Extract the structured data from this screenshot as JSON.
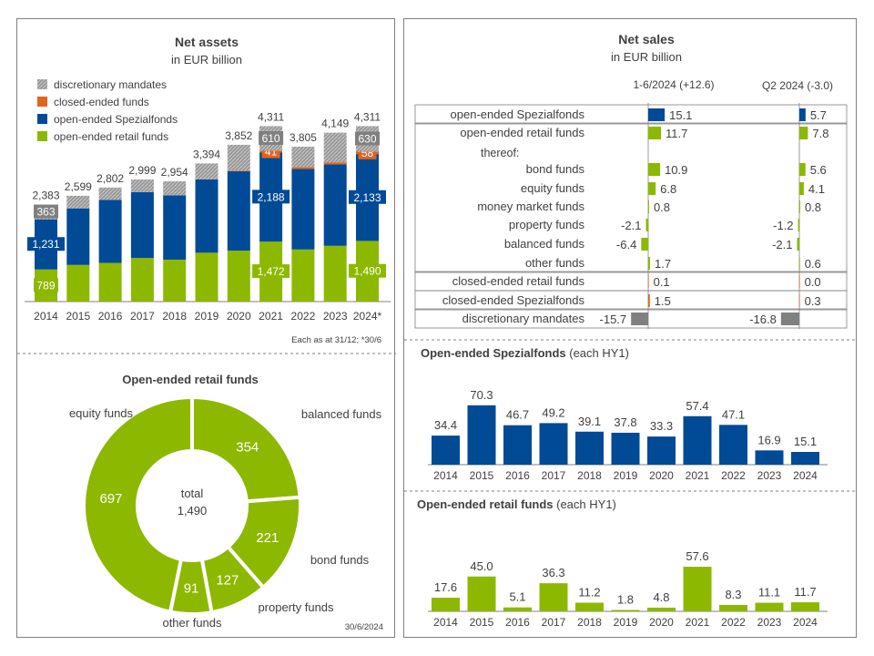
{
  "colors": {
    "retail": "#8DB800",
    "spezial": "#004A96",
    "closed": "#E2641C",
    "discretionary": "#808080",
    "text": "#404040",
    "divider": "#808080"
  },
  "net_assets": {
    "title": "Net assets",
    "subtitle": "in EUR billion",
    "legend": [
      {
        "label": "discretionary mandates",
        "color": "#8C8C8C",
        "pattern": "hatch-grey"
      },
      {
        "label": "closed-ended funds",
        "color": "#E2641C",
        "pattern": "solid"
      },
      {
        "label": "open-ended  Spezialfonds",
        "color": "#004A96",
        "pattern": "solid"
      },
      {
        "label": "open-ended retail funds",
        "color": "#8DB800",
        "pattern": "solid"
      }
    ],
    "footnote": "Each as at 31/12; *30/6"
  },
  "retail_pie": {
    "title": "Open-ended retail funds",
    "center_label": "total",
    "center_value": "1,490",
    "date_note": "30/6/2024"
  },
  "net_sales": {
    "title": "Net sales",
    "subtitle": "in EUR billion",
    "col1_header": "1-6/2024 (+12.6)",
    "col2_header": "Q2 2024 (-3.0)",
    "thereof_label": "thereof:"
  },
  "spezial_hy1": {
    "title": "Open-ended Spezialfonds",
    "title_suffix": " (each HY1)"
  },
  "retail_hy1": {
    "title": "Open-ended retail funds",
    "title_suffix": " (each HY1)"
  },
  "chart_data": [
    {
      "type": "bar",
      "stacked": true,
      "title": "Net assets",
      "subtitle": "in EUR billion",
      "categories": [
        "2014",
        "2015",
        "2016",
        "2017",
        "2018",
        "2019",
        "2020",
        "2021",
        "2022",
        "2023",
        "2024*"
      ],
      "totals": [
        2383,
        2599,
        2802,
        2999,
        2954,
        3394,
        3852,
        4311,
        3805,
        4149,
        4311
      ],
      "total_labels": [
        "2,383",
        "2,599",
        "2,802",
        "2,999",
        "2,954",
        "3,394",
        "3,852",
        "4,311",
        "3,805",
        "4,149",
        "4,311"
      ],
      "series": [
        {
          "name": "open-ended retail funds",
          "color": "#8DB800",
          "values": [
            789,
            900,
            950,
            1070,
            1030,
            1200,
            1250,
            1472,
            1280,
            1370,
            1490
          ],
          "labels": [
            "789",
            "",
            "",
            "",
            "",
            "",
            "",
            "1,472",
            "",
            "",
            "1,490"
          ]
        },
        {
          "name": "open-ended  Spezialfonds",
          "color": "#004A96",
          "values": [
            1231,
            1390,
            1550,
            1620,
            1580,
            1800,
            1950,
            2188,
            1980,
            2000,
            2133
          ],
          "labels": [
            "1,231",
            "",
            "",
            "",
            "",
            "",
            "",
            "2,188",
            "",
            "",
            "2,133"
          ]
        },
        {
          "name": "closed-ended funds",
          "color": "#E2641C",
          "values": [
            0,
            0,
            0,
            0,
            0,
            0,
            15,
            41,
            45,
            50,
            58
          ],
          "labels": [
            "",
            "",
            "",
            "",
            "",
            "",
            "",
            "41",
            "",
            "",
            "58"
          ]
        },
        {
          "name": "discretionary mandates",
          "color": "#8C8C8C",
          "values": [
            363,
            309,
            302,
            309,
            344,
            394,
            637,
            610,
            500,
            729,
            630
          ],
          "labels": [
            "363",
            "",
            "",
            "",
            "",
            "",
            "",
            "610",
            "",
            "",
            "630"
          ]
        }
      ],
      "ylim": [
        0,
        4700
      ],
      "footnote": "Each as at 31/12; *30/6"
    },
    {
      "type": "pie",
      "donut": true,
      "title": "Open-ended retail funds",
      "center_label": "total",
      "center_value": "1,490",
      "slices": [
        {
          "name": "balanced funds",
          "value": 354,
          "label": "354"
        },
        {
          "name": "bond funds",
          "value": 221,
          "label": "221"
        },
        {
          "name": "property funds",
          "value": 127,
          "label": "127"
        },
        {
          "name": "other funds",
          "value": 91,
          "label": "91"
        },
        {
          "name": "equity funds",
          "value": 697,
          "label": "697"
        }
      ],
      "color": "#8DB800",
      "date_note": "30/6/2024"
    },
    {
      "type": "bar",
      "orientation": "horizontal",
      "title": "Net sales",
      "subtitle": "in EUR billion",
      "col1_header": "1-6/2024 (+12.6)",
      "col2_header": "Q2 2024 (-3.0)",
      "rows": [
        {
          "label": "open-ended Spezialfonds",
          "v1": 15.1,
          "l1": "15.1",
          "v2": 5.7,
          "l2": "5.7",
          "color": "#004A96",
          "indent": false,
          "box": true
        },
        {
          "label": "open-ended retail funds",
          "v1": 11.7,
          "l1": "11.7",
          "v2": 7.8,
          "l2": "7.8",
          "color": "#8DB800",
          "indent": false,
          "box": false
        },
        {
          "label": "bond funds",
          "v1": 10.9,
          "l1": "10.9",
          "v2": 5.6,
          "l2": "5.6",
          "color": "#8DB800",
          "indent": true,
          "box": false
        },
        {
          "label": "equity funds",
          "v1": 6.8,
          "l1": "6.8",
          "v2": 4.1,
          "l2": "4.1",
          "color": "#8DB800",
          "indent": true,
          "box": false
        },
        {
          "label": "money market funds",
          "v1": 0.8,
          "l1": "0.8",
          "v2": 0.8,
          "l2": "0.8",
          "color": "#8DB800",
          "indent": true,
          "box": false
        },
        {
          "label": "property funds",
          "v1": -2.1,
          "l1": "-2.1",
          "v2": -1.2,
          "l2": "-1.2",
          "color": "#8DB800",
          "indent": true,
          "box": false
        },
        {
          "label": "balanced funds",
          "v1": -6.4,
          "l1": "-6.4",
          "v2": -2.1,
          "l2": "-2.1",
          "color": "#8DB800",
          "indent": true,
          "box": false
        },
        {
          "label": "other funds",
          "v1": 1.7,
          "l1": "1.7",
          "v2": 0.6,
          "l2": "0.6",
          "color": "#8DB800",
          "indent": true,
          "box": false
        },
        {
          "label": "closed-ended retail funds",
          "v1": 0.1,
          "l1": "0.1",
          "v2": 0.0,
          "l2": "0.0",
          "color": "#E2641C",
          "indent": false,
          "box": true
        },
        {
          "label": "closed-ended Spezialfonds",
          "v1": 1.5,
          "l1": "1.5",
          "v2": 0.3,
          "l2": "0.3",
          "color": "#E2641C",
          "indent": false,
          "box": true
        },
        {
          "label": "discretionary mandates",
          "v1": -15.7,
          "l1": "-15.7",
          "v2": -16.8,
          "l2": "-16.8",
          "color": "#808080",
          "indent": false,
          "box": true
        }
      ]
    },
    {
      "type": "bar",
      "title": "Open-ended Spezialfonds (each HY1)",
      "color": "#004A96",
      "categories": [
        "2014",
        "2015",
        "2016",
        "2017",
        "2018",
        "2019",
        "2020",
        "2021",
        "2022",
        "2023",
        "2024"
      ],
      "values": [
        34.4,
        70.3,
        46.7,
        49.2,
        39.1,
        37.8,
        33.3,
        57.4,
        47.1,
        16.9,
        15.1
      ],
      "labels": [
        "34.4",
        "70.3",
        "46.7",
        "49.2",
        "39.1",
        "37.8",
        "33.3",
        "57.4",
        "47.1",
        "16.9",
        "15.1"
      ]
    },
    {
      "type": "bar",
      "title": "Open-ended retail funds (each HY1)",
      "color": "#8DB800",
      "categories": [
        "2014",
        "2015",
        "2016",
        "2017",
        "2018",
        "2019",
        "2020",
        "2021",
        "2022",
        "2023",
        "2024"
      ],
      "values": [
        17.6,
        45.0,
        5.1,
        36.3,
        11.2,
        1.8,
        4.8,
        57.6,
        8.3,
        11.1,
        11.7
      ],
      "labels": [
        "17.6",
        "45.0",
        "5.1",
        "36.3",
        "11.2",
        "1.8",
        "4.8",
        "57.6",
        "8.3",
        "11.1",
        "11.7"
      ]
    }
  ]
}
